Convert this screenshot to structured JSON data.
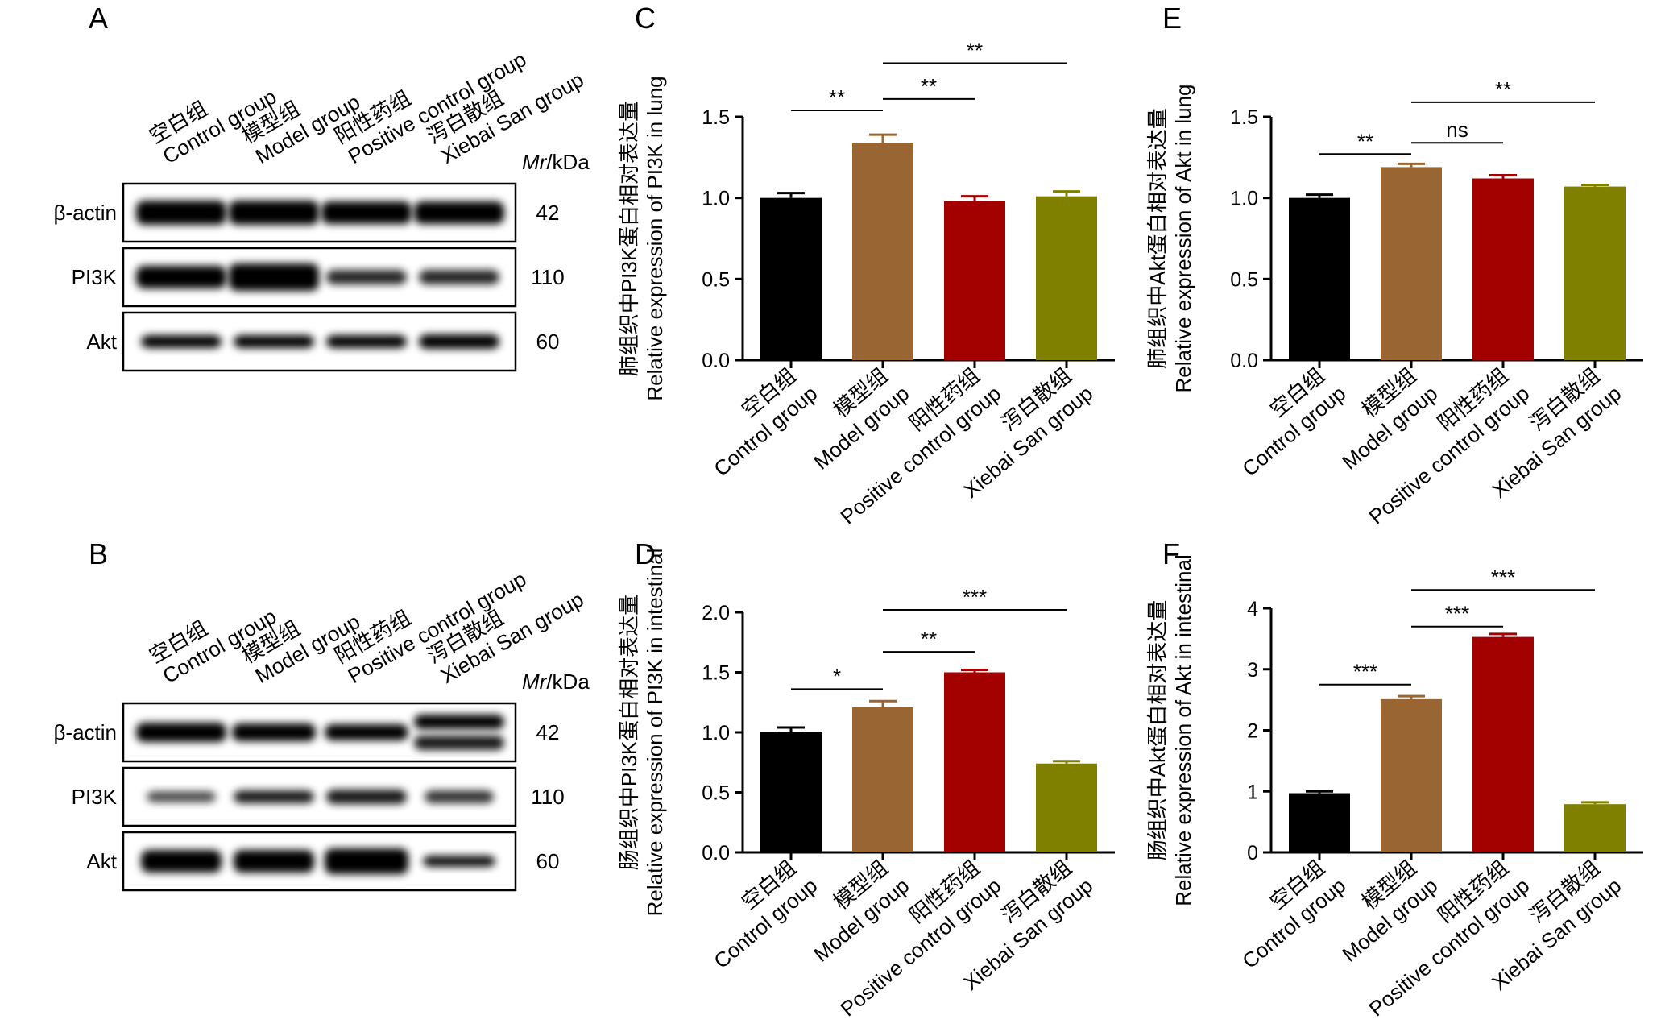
{
  "panel_letters": [
    "A",
    "B",
    "C",
    "D",
    "E",
    "F"
  ],
  "blots": [
    {
      "lane_labels": [
        {
          "cn": "空白组",
          "en": "Control group"
        },
        {
          "cn": "模型组",
          "en": "Model group"
        },
        {
          "cn": "阳性药组",
          "en": "Positive control group"
        },
        {
          "cn": "泻白散组",
          "en": "Xiebai San group"
        }
      ],
      "mr_prefix": "Mr",
      "mr_suffix": "/kDa",
      "rows": [
        {
          "protein": "β-actin",
          "kda": "42"
        },
        {
          "protein": "PI3K",
          "kda": "110"
        },
        {
          "protein": "Akt",
          "kda": "60"
        }
      ]
    },
    {
      "lane_labels": [
        {
          "cn": "空白组",
          "en": "Control group"
        },
        {
          "cn": "模型组",
          "en": "Model group"
        },
        {
          "cn": "阳性药组",
          "en": "Positive control group"
        },
        {
          "cn": "泻白散组",
          "en": "Xiebai San group"
        }
      ],
      "mr_prefix": "Mr",
      "mr_suffix": "/kDa",
      "rows": [
        {
          "protein": "β-actin",
          "kda": "42"
        },
        {
          "protein": "PI3K",
          "kda": "110"
        },
        {
          "protein": "Akt",
          "kda": "60"
        }
      ]
    }
  ],
  "colors": {
    "control": "#000000",
    "model": "#996633",
    "positive": "#A30000",
    "xiebai": "#808000"
  },
  "chart_data": [
    {
      "panel": "C",
      "type": "bar",
      "ylabel_cn": "肺组织中PI3K蛋白相对表达量",
      "ylabel_en": "Relative expression of PI3K in lung",
      "categories": [
        {
          "cn": "空白组",
          "en": "Control group"
        },
        {
          "cn": "模型组",
          "en": "Model group"
        },
        {
          "cn": "阳性药组",
          "en": "Positive control group"
        },
        {
          "cn": "泻白散组",
          "en": "Xiebai San group"
        }
      ],
      "values": [
        1.0,
        1.34,
        0.98,
        1.01
      ],
      "errors": [
        0.03,
        0.05,
        0.03,
        0.03
      ],
      "ylim": [
        0,
        1.5
      ],
      "yticks": [
        "0.0",
        "0.5",
        "1.0",
        "1.5"
      ],
      "significance": [
        {
          "from": 0,
          "to": 1,
          "label": "**",
          "y": 1.54
        },
        {
          "from": 1,
          "to": 2,
          "label": "**",
          "y": 1.61
        },
        {
          "from": 1,
          "to": 3,
          "label": "**",
          "y": 1.83
        }
      ]
    },
    {
      "panel": "D",
      "type": "bar",
      "ylabel_cn": "肠组织中PI3K蛋白相对表达量",
      "ylabel_en": "Relative expression of PI3K in intestinal",
      "categories": [
        {
          "cn": "空白组",
          "en": "Control group"
        },
        {
          "cn": "模型组",
          "en": "Model group"
        },
        {
          "cn": "阳性药组",
          "en": "Positive control group"
        },
        {
          "cn": "泻白散组",
          "en": "Xiebai San group"
        }
      ],
      "values": [
        1.0,
        1.21,
        1.5,
        0.74
      ],
      "errors": [
        0.04,
        0.05,
        0.02,
        0.02
      ],
      "ylim": [
        0,
        2.0
      ],
      "yticks": [
        "0.0",
        "0.5",
        "1.0",
        "1.5",
        "2.0"
      ],
      "significance": [
        {
          "from": 0,
          "to": 1,
          "label": "*",
          "y": 1.36
        },
        {
          "from": 1,
          "to": 2,
          "label": "**",
          "y": 1.67
        },
        {
          "from": 1,
          "to": 3,
          "label": "***",
          "y": 2.02
        }
      ]
    },
    {
      "panel": "E",
      "type": "bar",
      "ylabel_cn": "肺组织中Akt蛋白相对表达量",
      "ylabel_en": "Relative expression of Akt in lung",
      "categories": [
        {
          "cn": "空白组",
          "en": "Control group"
        },
        {
          "cn": "模型组",
          "en": "Model group"
        },
        {
          "cn": "阳性药组",
          "en": "Positive control group"
        },
        {
          "cn": "泻白散组",
          "en": "Xiebai San group"
        }
      ],
      "values": [
        1.0,
        1.19,
        1.12,
        1.07
      ],
      "errors": [
        0.02,
        0.02,
        0.02,
        0.01
      ],
      "ylim": [
        0,
        1.5
      ],
      "yticks": [
        "0.0",
        "0.5",
        "1.0",
        "1.5"
      ],
      "significance": [
        {
          "from": 0,
          "to": 1,
          "label": "**",
          "y": 1.27
        },
        {
          "from": 1,
          "to": 2,
          "label": "ns",
          "y": 1.34
        },
        {
          "from": 1,
          "to": 3,
          "label": "**",
          "y": 1.59
        }
      ]
    },
    {
      "panel": "F",
      "type": "bar",
      "ylabel_cn": "肠组织中Akt蛋白相对表达量",
      "ylabel_en": "Relative expression of Akt in intestinal",
      "categories": [
        {
          "cn": "空白组",
          "en": "Control group"
        },
        {
          "cn": "模型组",
          "en": "Model group"
        },
        {
          "cn": "阳性药组",
          "en": "Positive control group"
        },
        {
          "cn": "泻白散组",
          "en": "Xiebai San group"
        }
      ],
      "values": [
        0.97,
        2.51,
        3.53,
        0.79
      ],
      "errors": [
        0.03,
        0.05,
        0.05,
        0.03
      ],
      "ylim": [
        0,
        4
      ],
      "yticks": [
        "0",
        "1",
        "2",
        "3",
        "4"
      ],
      "significance": [
        {
          "from": 0,
          "to": 1,
          "label": "***",
          "y": 2.75
        },
        {
          "from": 1,
          "to": 2,
          "label": "***",
          "y": 3.7
        },
        {
          "from": 1,
          "to": 3,
          "label": "***",
          "y": 4.3
        }
      ]
    }
  ]
}
